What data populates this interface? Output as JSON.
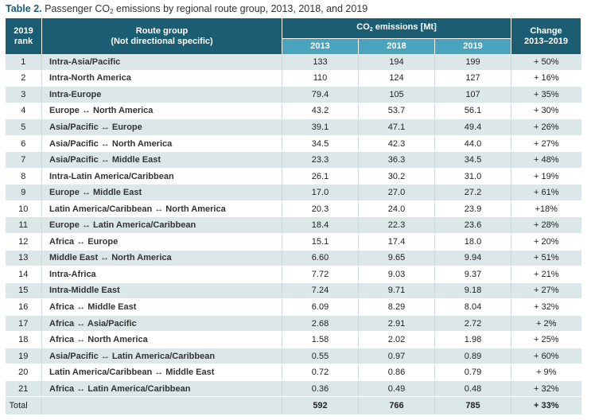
{
  "caption": {
    "label": "Table 2.",
    "text_before": "Passenger CO",
    "subscript": "2",
    "text_after": "emissions by regional route group, 2013, 2018, and 2019"
  },
  "header": {
    "rank_line1": "2019",
    "rank_line2": "rank",
    "route_line1": "Route group",
    "route_line2": "(Not directional specific)",
    "group_before": "CO",
    "group_sub": "2",
    "group_after": "emissions [Mt]",
    "year_1": "2013",
    "year_2": "2018",
    "year_3": "2019",
    "change_line1": "Change",
    "change_line2": "2013–2019"
  },
  "rows": [
    {
      "rank": "1",
      "route": "Intra-Asia/Pacific",
      "y2013": "133",
      "y2018": "194",
      "y2019": "199",
      "change": "+ 50%"
    },
    {
      "rank": "2",
      "route": "Intra-North America",
      "y2013": "110",
      "y2018": "124",
      "y2019": "127",
      "change": "+ 16%"
    },
    {
      "rank": "3",
      "route": "Intra-Europe",
      "y2013": "79.4",
      "y2018": "105",
      "y2019": "107",
      "change": "+ 35%"
    },
    {
      "rank": "4",
      "route": "Europe ↔ North America",
      "y2013": "43.2",
      "y2018": "53.7",
      "y2019": "56.1",
      "change": "+ 30%"
    },
    {
      "rank": "5",
      "route": "Asia/Pacific ↔ Europe",
      "y2013": "39.1",
      "y2018": "47.1",
      "y2019": "49.4",
      "change": "+ 26%"
    },
    {
      "rank": "6",
      "route": "Asia/Pacific ↔ North America",
      "y2013": "34.5",
      "y2018": "42.3",
      "y2019": "44.0",
      "change": "+ 27%"
    },
    {
      "rank": "7",
      "route": "Asia/Pacific ↔ Middle East",
      "y2013": "23.3",
      "y2018": "36.3",
      "y2019": "34.5",
      "change": "+ 48%"
    },
    {
      "rank": "8",
      "route": "Intra-Latin America/Caribbean",
      "y2013": "26.1",
      "y2018": "30.2",
      "y2019": "31.0",
      "change": "+ 19%"
    },
    {
      "rank": "9",
      "route": "Europe ↔ Middle East",
      "y2013": "17.0",
      "y2018": "27.0",
      "y2019": "27.2",
      "change": "+ 61%"
    },
    {
      "rank": "10",
      "route": "Latin America/Caribbean ↔ North America",
      "y2013": "20.3",
      "y2018": "24.0",
      "y2019": "23.9",
      "change": "+18%"
    },
    {
      "rank": "11",
      "route": "Europe ↔ Latin America/Caribbean",
      "y2013": "18.4",
      "y2018": "22.3",
      "y2019": "23.6",
      "change": "+ 28%"
    },
    {
      "rank": "12",
      "route": "Africa ↔ Europe",
      "y2013": "15.1",
      "y2018": "17.4",
      "y2019": "18.0",
      "change": "+ 20%"
    },
    {
      "rank": "13",
      "route": "Middle East ↔ North America",
      "y2013": "6.60",
      "y2018": "9.65",
      "y2019": "9.94",
      "change": "+ 51%"
    },
    {
      "rank": "14",
      "route": "Intra-Africa",
      "y2013": "7.72",
      "y2018": "9.03",
      "y2019": "9.37",
      "change": "+ 21%"
    },
    {
      "rank": "15",
      "route": "Intra-Middle East",
      "y2013": "7.24",
      "y2018": "9.71",
      "y2019": "9.18",
      "change": "+ 27%"
    },
    {
      "rank": "16",
      "route": "Africa ↔ Middle East",
      "y2013": "6.09",
      "y2018": "8.29",
      "y2019": "8.04",
      "change": "+ 32%"
    },
    {
      "rank": "17",
      "route": "Africa ↔ Asia/Pacific",
      "y2013": "2.68",
      "y2018": "2.91",
      "y2019": "2.72",
      "change": "+ 2%"
    },
    {
      "rank": "18",
      "route": "Africa ↔ North America",
      "y2013": "1.58",
      "y2018": "2.02",
      "y2019": "1.98",
      "change": "+ 25%"
    },
    {
      "rank": "19",
      "route": "Asia/Pacific ↔ Latin America/Caribbean",
      "y2013": "0.55",
      "y2018": "0.97",
      "y2019": "0.89",
      "change": "+ 60%"
    },
    {
      "rank": "20",
      "route": "Latin America/Caribbean ↔ Middle East",
      "y2013": "0.72",
      "y2018": "0.86",
      "y2019": "0.79",
      "change": "+ 9%"
    },
    {
      "rank": "21",
      "route": "Africa ↔ Latin America/Caribbean",
      "y2013": "0.36",
      "y2018": "0.49",
      "y2019": "0.48",
      "change": "+ 32%"
    }
  ],
  "total": {
    "label": "Total",
    "y2013": "592",
    "y2018": "766",
    "y2019": "785",
    "change": "+ 33%"
  }
}
